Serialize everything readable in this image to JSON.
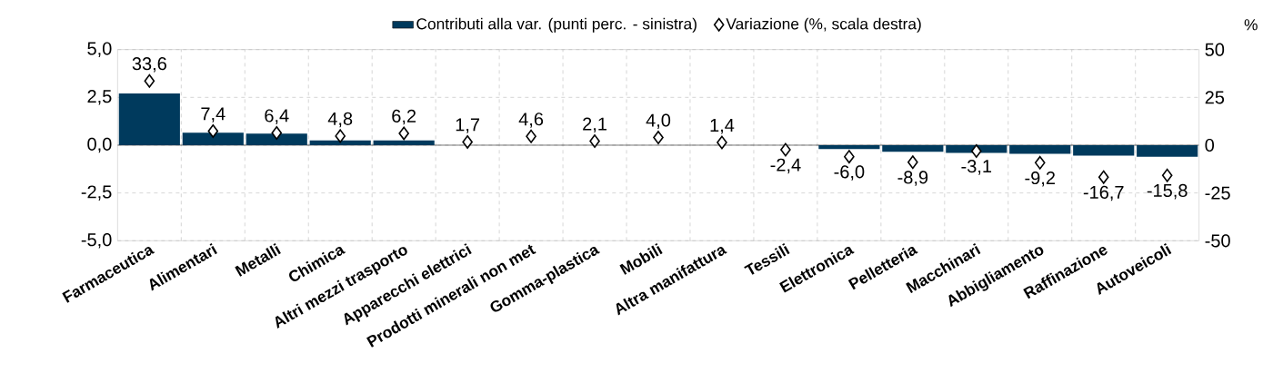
{
  "chart_data": {
    "type": "bar",
    "categories": [
      "Farmaceutica",
      "Alimentari",
      "Metalli",
      "Chimica",
      "Altri mezzi trasporto",
      "Apparecchi elettrici",
      "Prodotti minerali non met",
      "Gomma-plastica",
      "Mobili",
      "Altra manifattura",
      "Tessili",
      "Elettronica",
      "Pelletteria",
      "Macchinari",
      "Abbigliamento",
      "Raffinazione",
      "Autoveicoli"
    ],
    "series": [
      {
        "name": "Contributi alla var. (punti perc. - sinistra)",
        "color": "#003a5d",
        "values": [
          2.7,
          0.65,
          0.6,
          0.25,
          0.25,
          0,
          0,
          0,
          0,
          0,
          0,
          -0.2,
          -0.35,
          -0.4,
          -0.45,
          -0.55,
          -0.6
        ]
      },
      {
        "name": "Variazione (%, scala destra)",
        "type": "scatter",
        "axis": "y2",
        "marker": "diamond",
        "color": "#000000",
        "values": [
          33.6,
          7.4,
          6.4,
          4.8,
          6.2,
          1.7,
          4.6,
          2.1,
          4.0,
          1.4,
          -2.4,
          -6.0,
          -8.9,
          -3.1,
          -9.2,
          -16.7,
          -15.8
        ],
        "value_labels": [
          "33,6",
          "7,4",
          "6,4",
          "4,8",
          "6,2",
          "1,7",
          "4,6",
          "2,1",
          "4,0",
          "1,4",
          "-2,4",
          "-6,0",
          "-8,9",
          "-3,1",
          "-9,2",
          "-16,7",
          "-15,8"
        ]
      }
    ],
    "ylim": [
      -5,
      5
    ],
    "yticks": [
      {
        "value": -5,
        "label": "-5,0"
      },
      {
        "value": -2.5,
        "label": "-2,5"
      },
      {
        "value": 0,
        "label": "0,0"
      },
      {
        "value": 2.5,
        "label": "2,5"
      },
      {
        "value": 5,
        "label": "5,0"
      }
    ],
    "y2lim": [
      -50,
      50
    ],
    "y2ticks": [
      -50,
      -25,
      0,
      25,
      50
    ],
    "y2label": "%",
    "grid": true,
    "legend": "top"
  }
}
